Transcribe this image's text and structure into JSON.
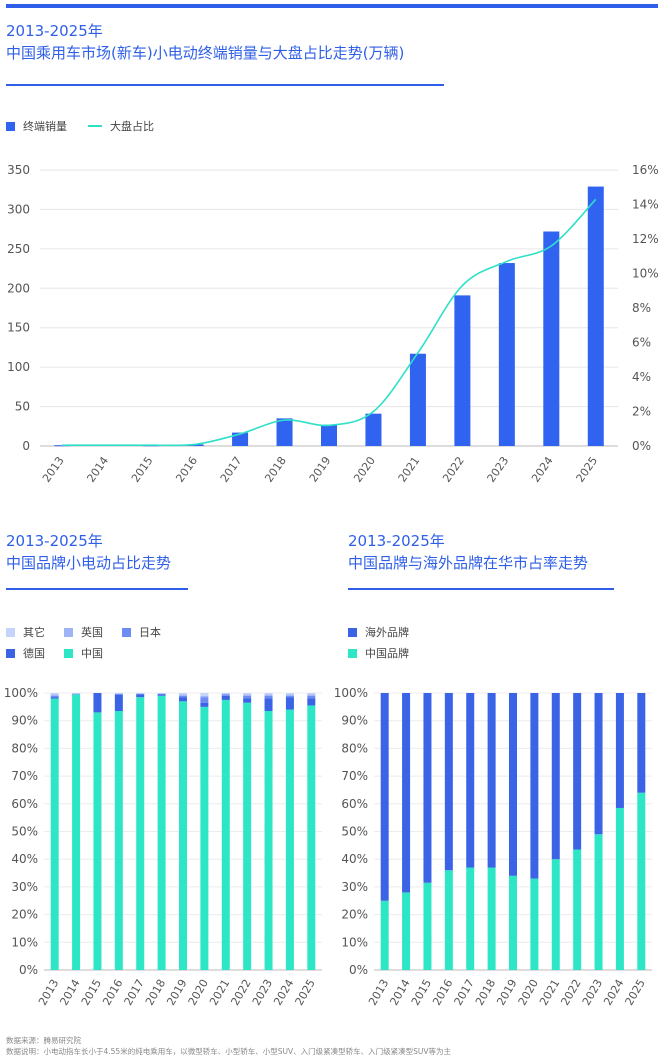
{
  "colors": {
    "accent": "#2f5fe8",
    "bar_blue": "#2f63f0",
    "line_cyan": "#2fe0c8",
    "china": "#2de6c6",
    "germany": "#3a63e6",
    "japan": "#6d8cf2",
    "uk": "#9fb3f7",
    "other": "#c6d3fb"
  },
  "chart1": {
    "title_line1": "2013-2025年",
    "title_line2": "中国乘用车市场(新车)小电动终端销量与大盘占比走势(万辆)",
    "legend": {
      "bar": "终端销量",
      "line": "大盘占比"
    }
  },
  "chart2": {
    "title_line1": "2013-2025年",
    "title_line2": "中国品牌小电动占比走势",
    "legend": [
      "其它",
      "英国",
      "日本",
      "德国",
      "中国"
    ]
  },
  "chart3": {
    "title_line1": "2013-2025年",
    "title_line2": "中国品牌与海外品牌在华市占率走势",
    "legend": [
      "海外品牌",
      "中国品牌"
    ]
  },
  "footer": {
    "source": "数据来源：腾易研究院",
    "note": "数据说明：小电动指车长小于4.55米的纯电乘用车，以微型轿车、小型轿车、小型SUV、入门级紧凑型轿车、入门级紧凑型SUV等为主"
  },
  "chart_data": [
    {
      "type": "bar",
      "categories": [
        "2013",
        "2014",
        "2015",
        "2016",
        "2017",
        "2018",
        "2019",
        "2020",
        "2021",
        "2022",
        "2023",
        "2024",
        "2025"
      ],
      "series": [
        {
          "name": "终端销量",
          "type": "bar",
          "axis": "left",
          "values": [
            1,
            1.5,
            1,
            2,
            17,
            35,
            27,
            41,
            117,
            191,
            232,
            272,
            329
          ]
        },
        {
          "name": "大盘占比",
          "type": "line",
          "axis": "right",
          "unit": "%",
          "values": [
            0.05,
            0.05,
            0.05,
            0.1,
            0.7,
            1.5,
            1.2,
            2.0,
            5.4,
            9.3,
            10.7,
            11.6,
            14.3
          ]
        }
      ],
      "ylim": [
        0,
        350
      ],
      "yticks": [
        0,
        50,
        100,
        150,
        200,
        250,
        300,
        350
      ],
      "y2lim": [
        0,
        16
      ],
      "y2ticks": [
        "0%",
        "2%",
        "4%",
        "6%",
        "8%",
        "10%",
        "12%",
        "14%",
        "16%"
      ],
      "legend_position": "top-left"
    },
    {
      "type": "bar",
      "stacked": true,
      "categories": [
        "2013",
        "2014",
        "2015",
        "2016",
        "2017",
        "2018",
        "2019",
        "2020",
        "2021",
        "2022",
        "2023",
        "2024",
        "2025"
      ],
      "series": [
        {
          "name": "中国",
          "values": [
            98,
            99.5,
            93,
            93.5,
            98.5,
            99,
            97,
            95,
            97.5,
            96.5,
            93.5,
            94,
            95.5
          ]
        },
        {
          "name": "德国",
          "values": [
            0.5,
            0,
            7,
            6,
            1,
            0.5,
            1.5,
            1.5,
            1.5,
            1.5,
            4.5,
            4.5,
            2.5
          ]
        },
        {
          "name": "日本",
          "values": [
            0.5,
            0.2,
            0,
            0,
            0.2,
            0.2,
            0.5,
            2,
            0.5,
            1,
            1,
            0.5,
            1
          ]
        },
        {
          "name": "英国",
          "values": [
            0.5,
            0.1,
            0,
            0.3,
            0.2,
            0.2,
            0.5,
            0.5,
            0.3,
            0.5,
            0.5,
            0.5,
            0.5
          ]
        },
        {
          "name": "其它",
          "values": [
            0.5,
            0.2,
            0,
            0.2,
            0.1,
            0.1,
            0.5,
            1,
            0.2,
            0.5,
            0.5,
            0.5,
            0.5
          ]
        }
      ],
      "ylim": [
        0,
        100
      ],
      "yticks": [
        "0%",
        "10%",
        "20%",
        "30%",
        "40%",
        "50%",
        "60%",
        "70%",
        "80%",
        "90%",
        "100%"
      ],
      "legend_position": "top-left"
    },
    {
      "type": "bar",
      "stacked": true,
      "categories": [
        "2013",
        "2014",
        "2015",
        "2016",
        "2017",
        "2018",
        "2019",
        "2020",
        "2021",
        "2022",
        "2023",
        "2024",
        "2025"
      ],
      "series": [
        {
          "name": "中国品牌",
          "values": [
            25,
            28,
            31.5,
            36,
            37,
            37,
            34,
            33,
            40,
            43.5,
            49,
            58.5,
            64
          ]
        },
        {
          "name": "海外品牌",
          "values": [
            75,
            72,
            68.5,
            64,
            63,
            63,
            66,
            67,
            60,
            56.5,
            51,
            41.5,
            36
          ]
        }
      ],
      "ylim": [
        0,
        100
      ],
      "yticks": [
        "0%",
        "10%",
        "20%",
        "30%",
        "40%",
        "50%",
        "60%",
        "70%",
        "80%",
        "90%",
        "100%"
      ],
      "legend_position": "top-left"
    }
  ]
}
